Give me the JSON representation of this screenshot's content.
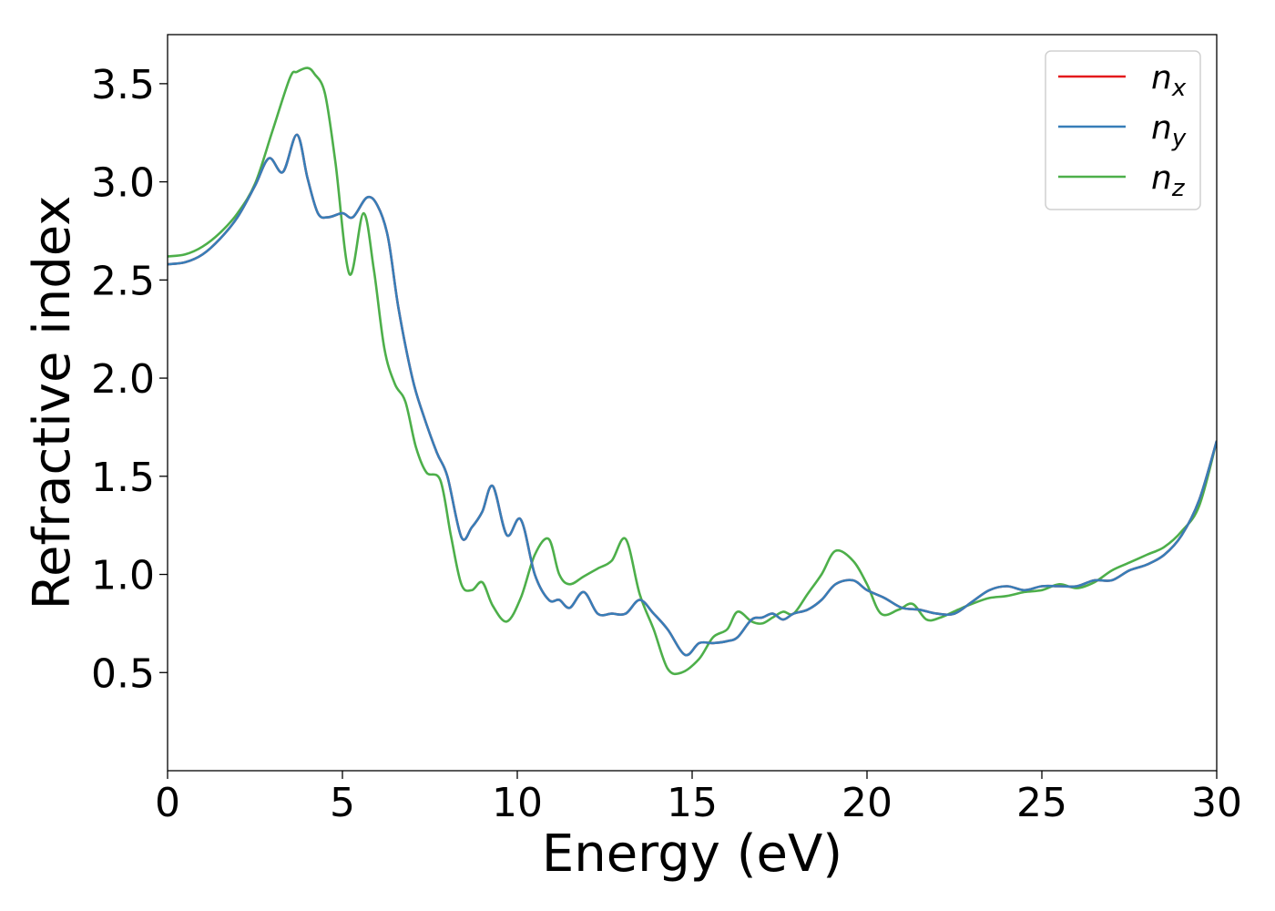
{
  "chart_data": {
    "type": "line",
    "title": "",
    "xlabel": "Energy (eV)",
    "ylabel": "Refractive index",
    "xlim": [
      0,
      30
    ],
    "ylim": [
      0,
      3.75
    ],
    "xticks": [
      "0",
      "5",
      "10",
      "15",
      "20",
      "25",
      "30"
    ],
    "yticks": [
      "0.5",
      "1.0",
      "1.5",
      "2.0",
      "2.5",
      "3.0",
      "3.5"
    ],
    "grid": false,
    "legend_position": "top-right",
    "series": [
      {
        "name": "n",
        "subscript": "x",
        "color": "#e41a1c",
        "x": [
          0,
          0.5,
          1,
          1.5,
          2,
          2.5,
          2.9,
          3.3,
          3.7,
          4.0,
          4.3,
          4.6,
          5.0,
          5.3,
          5.7,
          6.0,
          6.3,
          6.6,
          7.0,
          7.3,
          7.7,
          8.0,
          8.4,
          8.7,
          9.0,
          9.3,
          9.7,
          10.1,
          10.5,
          10.9,
          11.2,
          11.5,
          11.9,
          12.3,
          12.7,
          13.1,
          13.5,
          13.9,
          14.3,
          14.8,
          15.2,
          15.6,
          16.0,
          16.3,
          16.7,
          17.0,
          17.3,
          17.6,
          17.9,
          18.3,
          18.7,
          19.1,
          19.6,
          20.0,
          20.5,
          21.0,
          21.5,
          22.0,
          22.5,
          23.0,
          23.5,
          24.0,
          24.5,
          25.0,
          25.5,
          26.0,
          26.5,
          27.0,
          27.5,
          28.0,
          28.5,
          29.0,
          29.5,
          30.0
        ],
        "y": [
          2.58,
          2.59,
          2.63,
          2.71,
          2.82,
          2.98,
          3.12,
          3.05,
          3.24,
          3.02,
          2.84,
          2.82,
          2.84,
          2.82,
          2.92,
          2.88,
          2.72,
          2.36,
          2.0,
          1.82,
          1.62,
          1.5,
          1.19,
          1.24,
          1.32,
          1.45,
          1.2,
          1.28,
          1.0,
          0.87,
          0.87,
          0.83,
          0.91,
          0.8,
          0.8,
          0.8,
          0.87,
          0.8,
          0.72,
          0.59,
          0.65,
          0.65,
          0.66,
          0.68,
          0.77,
          0.78,
          0.8,
          0.77,
          0.8,
          0.82,
          0.87,
          0.95,
          0.97,
          0.92,
          0.88,
          0.83,
          0.82,
          0.8,
          0.8,
          0.86,
          0.92,
          0.94,
          0.92,
          0.94,
          0.94,
          0.94,
          0.97,
          0.97,
          1.02,
          1.05,
          1.1,
          1.2,
          1.38,
          1.68
        ]
      },
      {
        "name": "n",
        "subscript": "y",
        "color": "#377eb8",
        "x": [
          0,
          0.5,
          1,
          1.5,
          2,
          2.5,
          2.9,
          3.3,
          3.7,
          4.0,
          4.3,
          4.6,
          5.0,
          5.3,
          5.7,
          6.0,
          6.3,
          6.6,
          7.0,
          7.3,
          7.7,
          8.0,
          8.4,
          8.7,
          9.0,
          9.3,
          9.7,
          10.1,
          10.5,
          10.9,
          11.2,
          11.5,
          11.9,
          12.3,
          12.7,
          13.1,
          13.5,
          13.9,
          14.3,
          14.8,
          15.2,
          15.6,
          16.0,
          16.3,
          16.7,
          17.0,
          17.3,
          17.6,
          17.9,
          18.3,
          18.7,
          19.1,
          19.6,
          20.0,
          20.5,
          21.0,
          21.5,
          22.0,
          22.5,
          23.0,
          23.5,
          24.0,
          24.5,
          25.0,
          25.5,
          26.0,
          26.5,
          27.0,
          27.5,
          28.0,
          28.5,
          29.0,
          29.5,
          30.0
        ],
        "y": [
          2.58,
          2.59,
          2.63,
          2.71,
          2.82,
          2.98,
          3.12,
          3.05,
          3.24,
          3.02,
          2.84,
          2.82,
          2.84,
          2.82,
          2.92,
          2.88,
          2.72,
          2.36,
          2.0,
          1.82,
          1.62,
          1.5,
          1.19,
          1.24,
          1.32,
          1.45,
          1.2,
          1.28,
          1.0,
          0.87,
          0.87,
          0.83,
          0.91,
          0.8,
          0.8,
          0.8,
          0.87,
          0.8,
          0.72,
          0.59,
          0.65,
          0.65,
          0.66,
          0.68,
          0.77,
          0.78,
          0.8,
          0.77,
          0.8,
          0.82,
          0.87,
          0.95,
          0.97,
          0.92,
          0.88,
          0.83,
          0.82,
          0.8,
          0.8,
          0.86,
          0.92,
          0.94,
          0.92,
          0.94,
          0.94,
          0.94,
          0.97,
          0.97,
          1.02,
          1.05,
          1.1,
          1.2,
          1.38,
          1.68
        ]
      },
      {
        "name": "n",
        "subscript": "z",
        "color": "#4daf4a",
        "x": [
          0,
          0.5,
          1,
          1.5,
          2,
          2.5,
          3.0,
          3.5,
          3.7,
          4.0,
          4.2,
          4.5,
          4.8,
          5.2,
          5.6,
          5.9,
          6.2,
          6.5,
          6.8,
          7.1,
          7.4,
          7.8,
          8.1,
          8.4,
          8.7,
          9.0,
          9.3,
          9.7,
          10.1,
          10.5,
          10.9,
          11.2,
          11.5,
          11.9,
          12.3,
          12.7,
          13.1,
          13.5,
          13.9,
          14.3,
          14.7,
          15.2,
          15.6,
          16.0,
          16.3,
          16.7,
          17.0,
          17.3,
          17.6,
          17.9,
          18.3,
          18.7,
          19.1,
          19.6,
          20.0,
          20.4,
          20.9,
          21.3,
          21.7,
          22.1,
          22.6,
          23.0,
          23.5,
          24.0,
          24.5,
          25.0,
          25.5,
          26.0,
          26.5,
          27.0,
          27.5,
          28.0,
          28.5,
          29.0,
          29.5,
          30.0
        ],
        "y": [
          2.62,
          2.63,
          2.67,
          2.74,
          2.84,
          2.99,
          3.26,
          3.53,
          3.56,
          3.58,
          3.55,
          3.45,
          3.1,
          2.53,
          2.84,
          2.55,
          2.15,
          1.97,
          1.88,
          1.65,
          1.52,
          1.48,
          1.2,
          0.95,
          0.92,
          0.96,
          0.84,
          0.76,
          0.88,
          1.1,
          1.18,
          1.0,
          0.95,
          0.99,
          1.03,
          1.07,
          1.18,
          0.9,
          0.72,
          0.52,
          0.5,
          0.57,
          0.68,
          0.72,
          0.81,
          0.76,
          0.75,
          0.78,
          0.81,
          0.8,
          0.9,
          1.0,
          1.12,
          1.07,
          0.95,
          0.8,
          0.82,
          0.85,
          0.77,
          0.78,
          0.82,
          0.85,
          0.88,
          0.89,
          0.91,
          0.92,
          0.95,
          0.93,
          0.96,
          1.02,
          1.06,
          1.1,
          1.14,
          1.22,
          1.35,
          1.68
        ]
      }
    ]
  }
}
